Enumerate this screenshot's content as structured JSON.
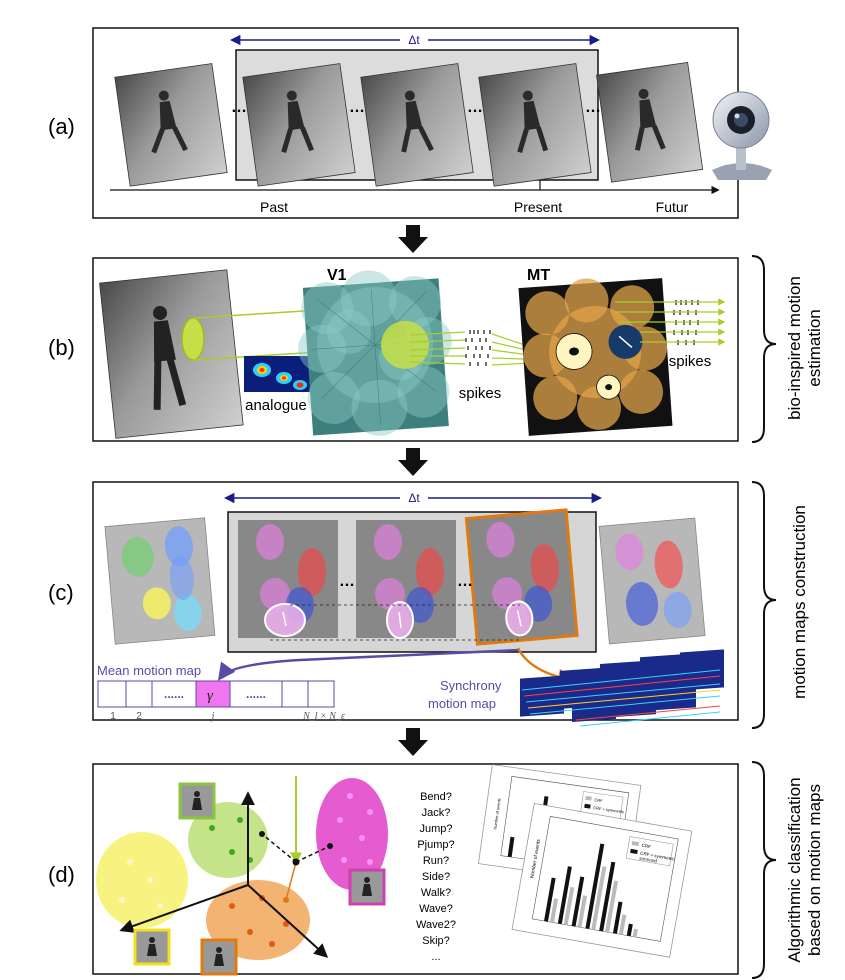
{
  "panels": {
    "a": {
      "label": "(a)",
      "delta_t": "Δt",
      "timeline": {
        "past": "Past",
        "present": "Present",
        "future": "Futur"
      },
      "dots": "…"
    },
    "b": {
      "label": "(b)",
      "v1": "V1",
      "mt": "MT",
      "analogue": "analogue",
      "spikes_1": "spikes",
      "spikes_2": "spikes",
      "side_label": [
        "bio-inspired motion",
        "estimation"
      ]
    },
    "c": {
      "label": "(c)",
      "delta_t": "Δt",
      "mean_motion_map": "Mean motion map",
      "synchrony_motion_map": [
        "Synchrony",
        "motion map"
      ],
      "cell_ticks": {
        "first": "1",
        "second": "2",
        "j": "j",
        "last": "N_l × N_ε"
      },
      "gamma": "γ",
      "side_label": [
        "motion maps construction"
      ],
      "dots_row": "......"
    },
    "d": {
      "label": "(d)",
      "questions": [
        "Bend?",
        "Jack?",
        "Jump?",
        "Pjump?",
        "Run?",
        "Side?",
        "Walk?",
        "Wave?",
        "Wave2?",
        "Skip?",
        "..."
      ],
      "side_label": [
        "Algorithmic classification",
        "based on motion  maps"
      ],
      "legend": {
        "crf": "CRF",
        "crf_surround": "CRF + symmetric",
        "surround": "surround"
      },
      "ylabel": "Number of events"
    }
  },
  "colors": {
    "arrow_blue": "#1c1c8a",
    "text_purple": "#5a4aa8",
    "orange": "#e07a10",
    "lime": "#a6cf2a",
    "magenta": "#e040c8"
  }
}
